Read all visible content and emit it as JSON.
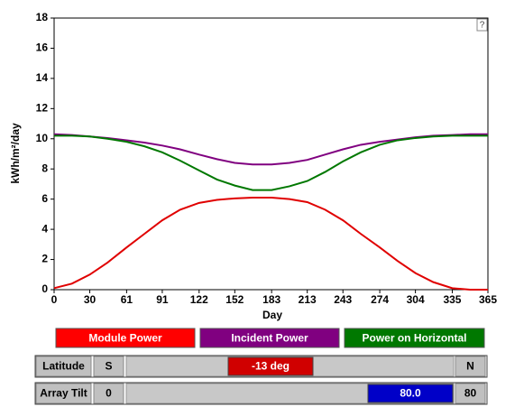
{
  "chart_data": {
    "type": "line",
    "xlabel": "Day",
    "ylabel": "kWh/m²/day",
    "x": [
      0,
      15,
      30,
      45,
      61,
      76,
      91,
      106,
      122,
      137,
      152,
      167,
      183,
      198,
      213,
      228,
      243,
      258,
      274,
      289,
      304,
      319,
      335,
      350,
      365
    ],
    "series": [
      {
        "name": "Module Power",
        "color": "#e00000",
        "values": [
          0.1,
          0.4,
          1.0,
          1.8,
          2.8,
          3.7,
          4.6,
          5.3,
          5.75,
          5.95,
          6.05,
          6.1,
          6.1,
          6.0,
          5.8,
          5.3,
          4.6,
          3.7,
          2.8,
          1.9,
          1.1,
          0.5,
          0.1,
          0.0,
          0.0
        ]
      },
      {
        "name": "Incident Power",
        "color": "#800080",
        "values": [
          10.3,
          10.25,
          10.15,
          10.05,
          9.9,
          9.75,
          9.55,
          9.3,
          8.95,
          8.65,
          8.4,
          8.3,
          8.3,
          8.4,
          8.6,
          8.95,
          9.3,
          9.6,
          9.8,
          9.95,
          10.1,
          10.2,
          10.25,
          10.3,
          10.3
        ]
      },
      {
        "name": "Power on Horizontal",
        "color": "#007800",
        "values": [
          10.2,
          10.2,
          10.15,
          10.0,
          9.8,
          9.5,
          9.1,
          8.55,
          7.9,
          7.3,
          6.9,
          6.6,
          6.6,
          6.85,
          7.2,
          7.8,
          8.5,
          9.1,
          9.6,
          9.9,
          10.05,
          10.15,
          10.2,
          10.2,
          10.2
        ]
      }
    ],
    "xlim": [
      0,
      365
    ],
    "xticks": [
      0,
      30,
      61,
      91,
      122,
      152,
      183,
      213,
      243,
      274,
      304,
      335,
      365
    ],
    "ylim": [
      0,
      18
    ],
    "yticks": [
      0,
      2,
      4,
      6,
      8,
      10,
      12,
      14,
      16,
      18
    ]
  },
  "help": "?",
  "sliders": [
    {
      "label": "Latitude",
      "min_label": "S",
      "max_label": "N",
      "value": "-13 deg",
      "thumb_color": "#d00000"
    },
    {
      "label": "Array Tilt",
      "min_label": "0",
      "max_label": "80",
      "value": "80.0",
      "thumb_color": "#0000c8"
    }
  ]
}
